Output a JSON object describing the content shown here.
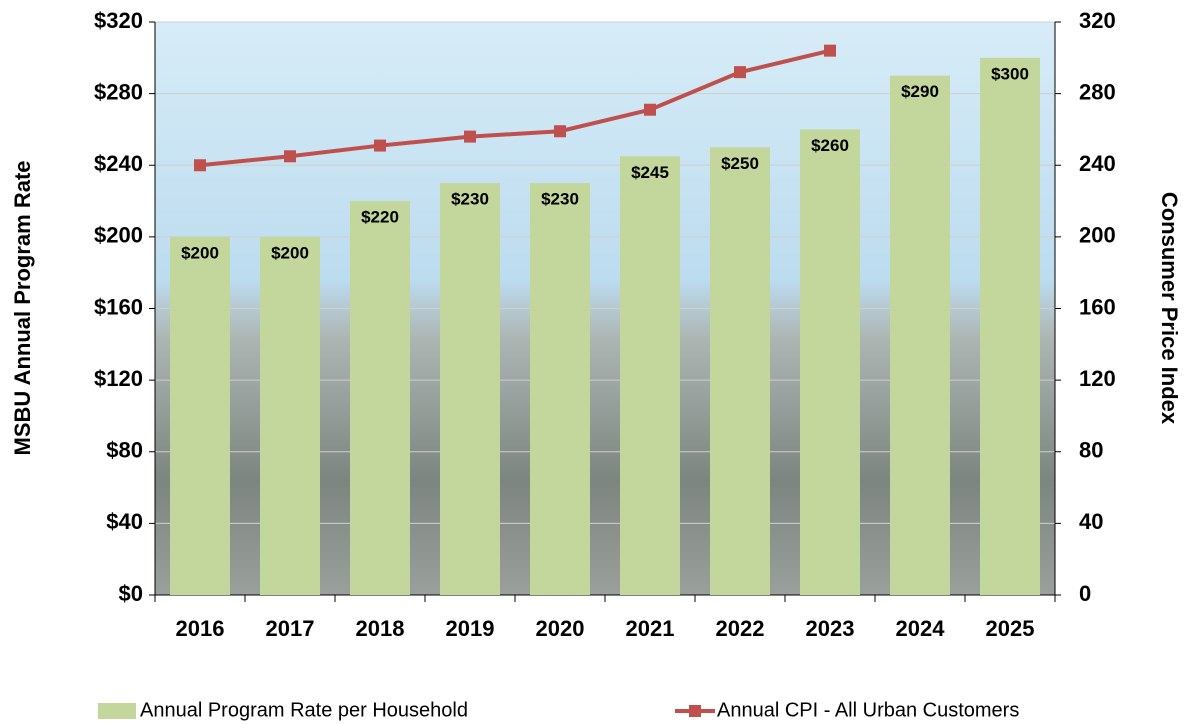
{
  "chart_data": {
    "type": "bar",
    "y_label": "MSBU Annual Program Rate",
    "y2_label": "Consumer Price Index",
    "categories": [
      "2016",
      "2017",
      "2018",
      "2019",
      "2020",
      "2021",
      "2022",
      "2023",
      "2024",
      "2025"
    ],
    "series": [
      {
        "name": "Annual Program Rate per Household",
        "color": "#c3d69b",
        "values": [
          200,
          200,
          220,
          230,
          230,
          245,
          250,
          260,
          290,
          300
        ],
        "value_labels": [
          "$200",
          "$200",
          "$220",
          "$230",
          "$230",
          "$245",
          "$250",
          "$260",
          "$290",
          "$300"
        ]
      },
      {
        "name": "Annual CPI - All Urban Customers",
        "color": "#c0504d",
        "type": "line",
        "axis": "y2",
        "values": [
          240,
          245,
          251,
          256,
          259,
          271,
          292,
          304,
          null,
          null
        ]
      }
    ],
    "ylim": [
      0,
      320
    ],
    "yticks": [
      {
        "value": 0,
        "label": "$0"
      },
      {
        "value": 40,
        "label": "$40"
      },
      {
        "value": 80,
        "label": "$80"
      },
      {
        "value": 120,
        "label": "$120"
      },
      {
        "value": 160,
        "label": "$160"
      },
      {
        "value": 200,
        "label": "$200"
      },
      {
        "value": 240,
        "label": "$240"
      },
      {
        "value": 280,
        "label": "$280"
      },
      {
        "value": 320,
        "label": "$320"
      }
    ],
    "y2lim": [
      0,
      320
    ],
    "y2ticks": [
      0,
      40,
      80,
      120,
      160,
      200,
      240,
      280,
      320
    ],
    "grid": true,
    "legend": "bottom"
  }
}
